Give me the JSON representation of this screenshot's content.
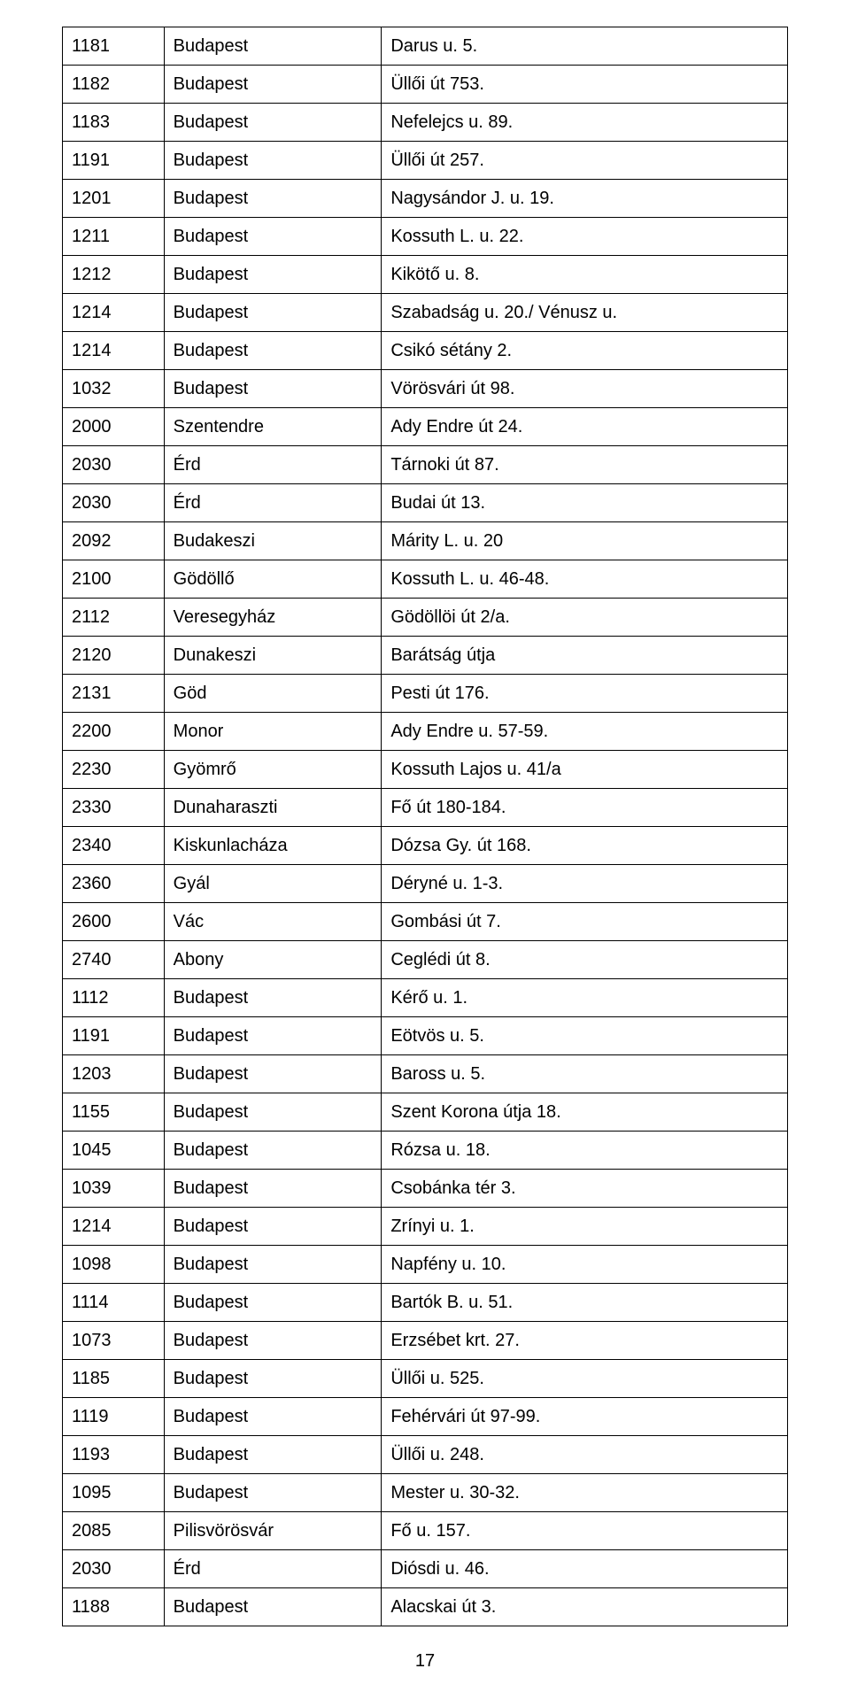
{
  "page_number": "17",
  "table": {
    "rows": [
      [
        "1181",
        "Budapest",
        "Darus u. 5."
      ],
      [
        "1182",
        "Budapest",
        "Üllői út 753."
      ],
      [
        "1183",
        "Budapest",
        "Nefelejcs u. 89."
      ],
      [
        "1191",
        "Budapest",
        "Üllői út 257."
      ],
      [
        "1201",
        "Budapest",
        "Nagysándor J. u. 19."
      ],
      [
        "1211",
        "Budapest",
        "Kossuth L. u. 22."
      ],
      [
        "1212",
        "Budapest",
        "Kikötő u. 8."
      ],
      [
        "1214",
        "Budapest",
        "Szabadság u. 20./ Vénusz u."
      ],
      [
        "1214",
        "Budapest",
        "Csikó sétány 2."
      ],
      [
        "1032",
        "Budapest",
        "Vörösvári út 98."
      ],
      [
        "2000",
        "Szentendre",
        "Ady Endre út 24."
      ],
      [
        "2030",
        "Érd",
        "Tárnoki út 87."
      ],
      [
        "2030",
        "Érd",
        "Budai út 13."
      ],
      [
        "2092",
        "Budakeszi",
        "Márity L. u. 20"
      ],
      [
        "2100",
        "Gödöllő",
        "Kossuth L. u. 46-48."
      ],
      [
        "2112",
        "Veresegyház",
        "Gödöllöi út 2/a."
      ],
      [
        "2120",
        "Dunakeszi",
        "Barátság útja"
      ],
      [
        "2131",
        "Göd",
        "Pesti út 176."
      ],
      [
        "2200",
        "Monor",
        "Ady Endre u. 57-59."
      ],
      [
        "2230",
        "Gyömrő",
        "Kossuth Lajos u. 41/a"
      ],
      [
        "2330",
        "Dunaharaszti",
        "Fő út 180-184."
      ],
      [
        "2340",
        "Kiskunlacháza",
        "Dózsa Gy. út 168."
      ],
      [
        "2360",
        "Gyál",
        "Déryné u. 1-3."
      ],
      [
        "2600",
        "Vác",
        "Gombási út 7."
      ],
      [
        "2740",
        "Abony",
        "Ceglédi út 8."
      ],
      [
        "1112",
        "Budapest",
        "Kérő u. 1."
      ],
      [
        "1191",
        "Budapest",
        "Eötvös u. 5."
      ],
      [
        "1203",
        "Budapest",
        "Baross u. 5."
      ],
      [
        "1155",
        "Budapest",
        "Szent Korona útja 18."
      ],
      [
        "1045",
        "Budapest",
        "Rózsa u. 18."
      ],
      [
        "1039",
        "Budapest",
        "Csobánka tér 3."
      ],
      [
        "1214",
        "Budapest",
        "Zrínyi u. 1."
      ],
      [
        "1098",
        "Budapest",
        "Napfény u. 10."
      ],
      [
        "1114",
        "Budapest",
        "Bartók B. u. 51."
      ],
      [
        "1073",
        "Budapest",
        "Erzsébet krt. 27."
      ],
      [
        "1185",
        "Budapest",
        "Üllői u. 525."
      ],
      [
        "1119",
        "Budapest",
        "Fehérvári út 97-99."
      ],
      [
        "1193",
        "Budapest",
        "Üllői u. 248."
      ],
      [
        "1095",
        "Budapest",
        "Mester u. 30-32."
      ],
      [
        "2085",
        "Pilisvörösvár",
        "Fő u. 157."
      ],
      [
        "2030",
        "Érd",
        "Diósdi u. 46."
      ],
      [
        "1188",
        "Budapest",
        "Alacskai út 3."
      ]
    ]
  }
}
